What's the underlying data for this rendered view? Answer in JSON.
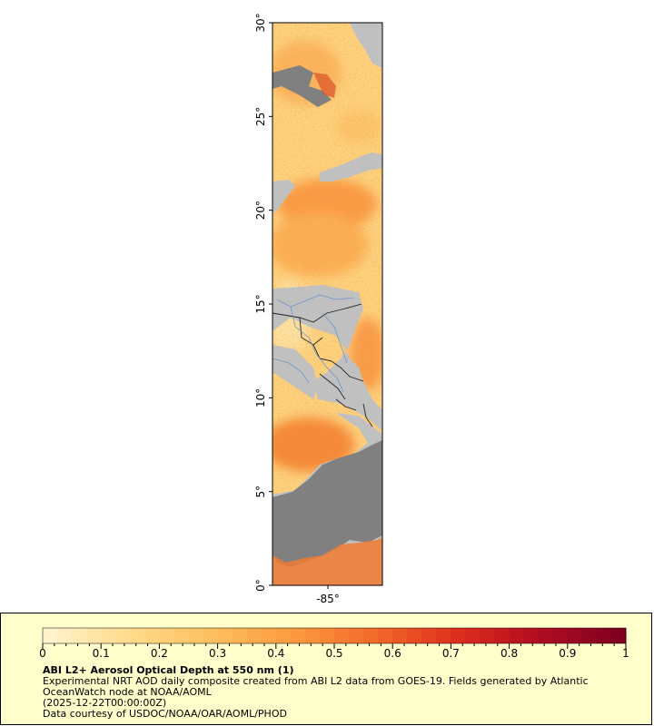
{
  "map": {
    "x_axis": {
      "ticks": [
        {
          "value": -85,
          "label": "-85°"
        }
      ]
    },
    "y_axis": {
      "ticks": [
        {
          "value": 0,
          "label": "0°"
        },
        {
          "value": 5,
          "label": "5°"
        },
        {
          "value": 10,
          "label": "10°"
        },
        {
          "value": 15,
          "label": "15°"
        },
        {
          "value": 20,
          "label": "20°"
        },
        {
          "value": 25,
          "label": "25°"
        },
        {
          "value": 30,
          "label": "30°"
        }
      ]
    },
    "colors": {
      "land": "#c0c0c0",
      "no_data": "#808080",
      "country_borders": "#222222",
      "rivers": "#6b96c8"
    }
  },
  "legend": {
    "title": "ABI L2+ Aerosol Optical Depth at 550 nm (1)",
    "line1": "Experimental NRT AOD daily composite created from ABI L2 data from GOES-19. Fields generated by Atlantic",
    "line2": "OceanWatch node at NOAA/AOML",
    "line3": "(2025-12-22T00:00:00Z)",
    "line4": "Data courtesy of USDOC/NOAA/OAR/AOML/PHOD",
    "colorbar": {
      "min": 0,
      "max": 1,
      "ticks": [
        "0",
        "0.1",
        "0.2",
        "0.3",
        "0.4",
        "0.5",
        "0.6",
        "0.7",
        "0.8",
        "0.9",
        "1"
      ],
      "colors": [
        "#fff2cc",
        "#ffdb8a",
        "#fdbf5f",
        "#fb9a3f",
        "#f2692a",
        "#de2e1c",
        "#b10d22",
        "#800020"
      ]
    }
  }
}
